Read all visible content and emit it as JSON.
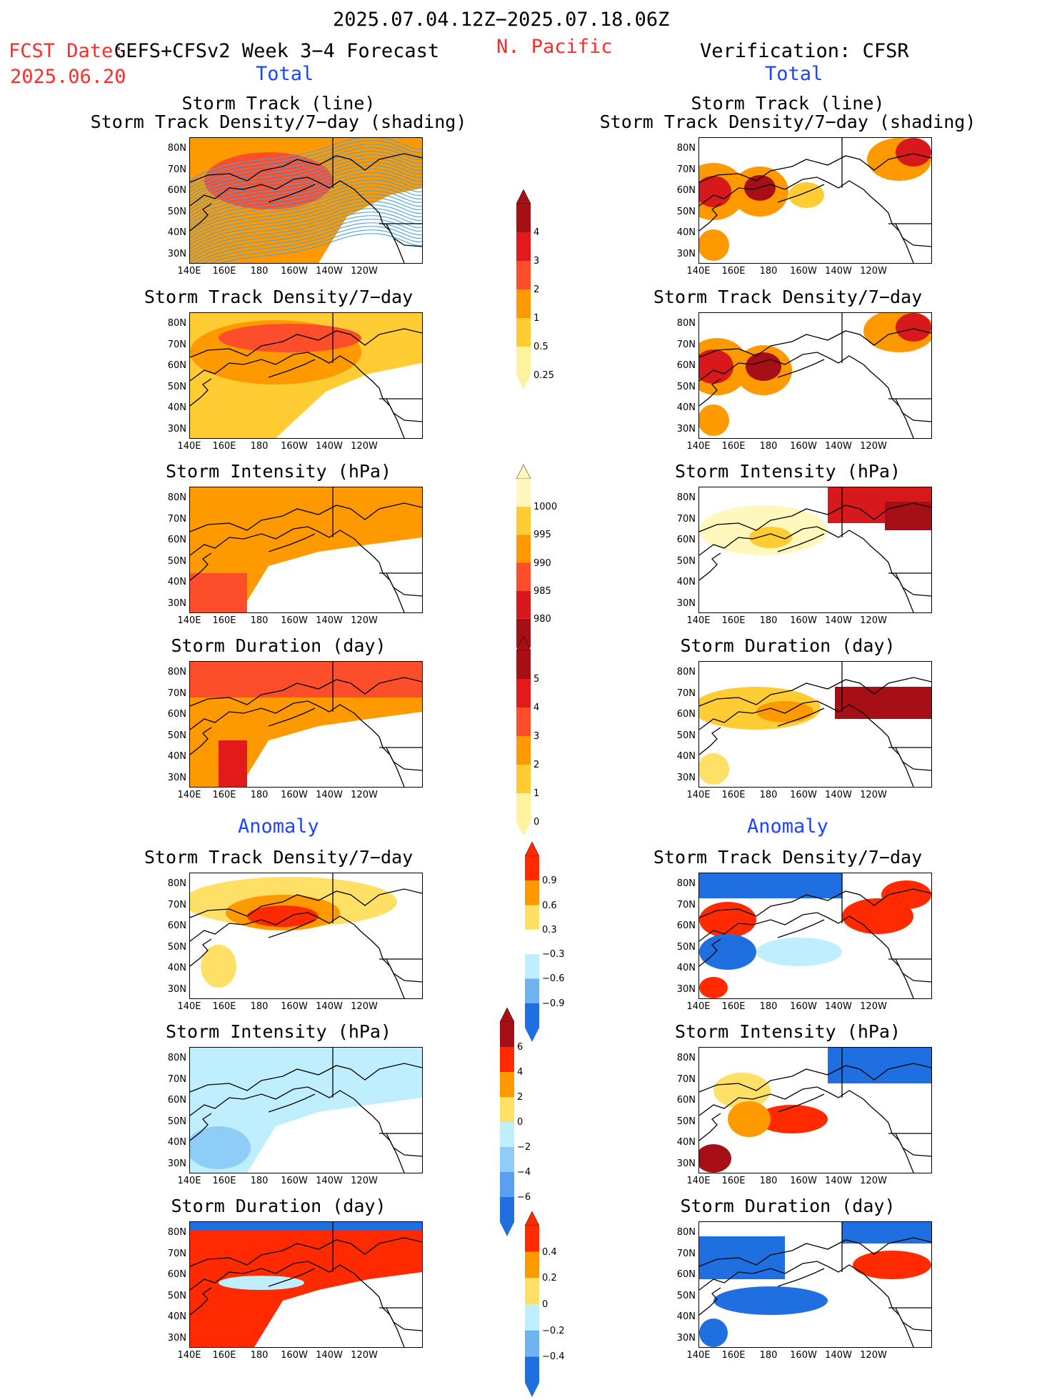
{
  "header": {
    "period": "2025.07.04.12Z−2025.07.18.06Z",
    "fcst_label": "FCST Date:",
    "fcst_date": "2025.06.20",
    "model": "GEFS+CFSv2 Week 3−4 Forecast",
    "region": "N. Pacific",
    "verification": "Verification: CFSR",
    "total_label": "Total",
    "anomaly_label": "Anomaly"
  },
  "titles": {
    "track_line": "Storm Track (line)",
    "track_density_shading": "Storm Track Density/7−day (shading)",
    "track_density": "Storm Track Density/7−day",
    "intensity": "Storm Intensity (hPa)",
    "duration": "Storm Duration (day)"
  },
  "axes": {
    "lat_labels": [
      "80N",
      "70N",
      "60N",
      "50N",
      "40N",
      "30N"
    ],
    "lon_labels": [
      "140E",
      "160E",
      "180",
      "160W",
      "140W",
      "120W"
    ]
  },
  "colorbars": [
    {
      "id": "density",
      "labels": [
        "4",
        "3",
        "2",
        "1",
        "0.5",
        "0.25"
      ],
      "colors": [
        "#a50f15",
        "#e31a1c",
        "#fc4e2a",
        "#ff9900",
        "#ffcc33",
        "#fff3a0"
      ]
    },
    {
      "id": "intensity",
      "labels": [
        "1000",
        "995",
        "990",
        "985",
        "980"
      ],
      "colors": [
        "#fff7bc",
        "#ffcc33",
        "#ff9900",
        "#fc4e2a",
        "#d7191c",
        "#a50f15"
      ]
    },
    {
      "id": "duration",
      "labels": [
        "5",
        "4",
        "3",
        "2",
        "1",
        "0"
      ],
      "colors": [
        "#a50f15",
        "#e31a1c",
        "#fc4e2a",
        "#ff9900",
        "#ffcc33",
        "#fff3a0"
      ]
    },
    {
      "id": "density_anom",
      "labels": [
        "0.9",
        "0.6",
        "0.3",
        "−0.3",
        "−0.6",
        "−0.9"
      ],
      "colors": [
        "#ff2a00",
        "#ff9900",
        "#ffe066",
        "#ffffff",
        "#bfefff",
        "#6fb4f0",
        "#1f6fe0"
      ]
    },
    {
      "id": "intensity_anom",
      "labels": [
        "6",
        "4",
        "2",
        "0",
        "−2",
        "−4",
        "−6"
      ],
      "colors": [
        "#a50f15",
        "#ff2a00",
        "#ff9900",
        "#ffe066",
        "#bfefff",
        "#8ecdf7",
        "#5aa0f0",
        "#1f6fe0"
      ]
    },
    {
      "id": "duration_anom",
      "labels": [
        "0.4",
        "0.2",
        "0",
        "−0.2",
        "−0.4"
      ],
      "colors": [
        "#ff2a00",
        "#ff9900",
        "#ffe066",
        "#bfefff",
        "#6fb4f0",
        "#1f6fe0"
      ]
    }
  ]
}
